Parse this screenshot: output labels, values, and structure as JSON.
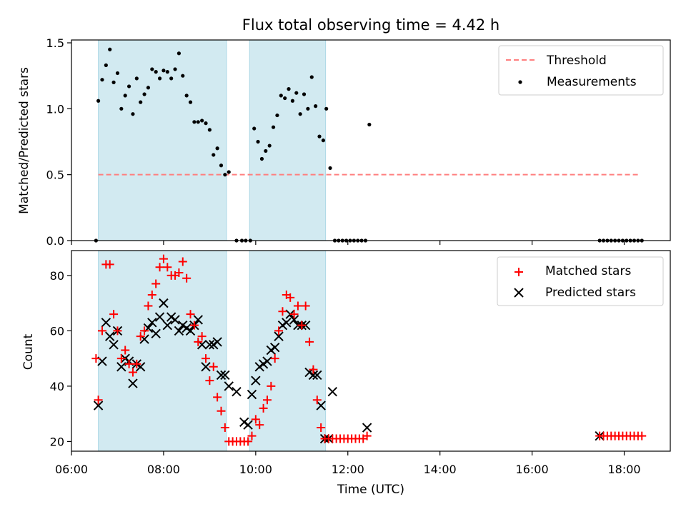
{
  "colors": {
    "band": "#add8e6",
    "threshold": "#ff7f7f",
    "matched": "#ff0000",
    "predicted": "#000000",
    "measurement": "#000000"
  },
  "chart_data": [
    {
      "type": "scatter",
      "title": "Flux total observing time = 4.42 h",
      "xlabel": "",
      "ylabel": "Matched/Predicted stars",
      "xlim": [
        "06:00",
        "19:00"
      ],
      "ylim": [
        0,
        1.5
      ],
      "yticks": [
        "0.0",
        "0.5",
        "1.0",
        "1.5"
      ],
      "grid": false,
      "legend_position": "top-right",
      "shaded_intervals": [
        [
          "06:35",
          "09:22"
        ],
        [
          "09:52",
          "11:31"
        ]
      ],
      "threshold": {
        "name": "Threshold",
        "value": 0.5,
        "x_range": [
          "06:35",
          "18:20"
        ],
        "style": "dashed"
      },
      "series": [
        {
          "name": "Measurements",
          "marker": "dot",
          "x": [
            "06:32",
            "06:35",
            "06:40",
            "06:45",
            "06:50",
            "06:55",
            "07:00",
            "07:05",
            "07:10",
            "07:15",
            "07:20",
            "07:25",
            "07:30",
            "07:35",
            "07:40",
            "07:45",
            "07:50",
            "07:55",
            "08:00",
            "08:05",
            "08:10",
            "08:15",
            "08:20",
            "08:25",
            "08:30",
            "08:35",
            "08:40",
            "08:45",
            "08:50",
            "08:55",
            "09:00",
            "09:05",
            "09:10",
            "09:15",
            "09:20",
            "09:25",
            "09:35",
            "09:42",
            "09:47",
            "09:53",
            "09:58",
            "10:03",
            "10:08",
            "10:13",
            "10:18",
            "10:23",
            "10:28",
            "10:33",
            "10:38",
            "10:43",
            "10:48",
            "10:53",
            "10:58",
            "11:03",
            "11:08",
            "11:13",
            "11:18",
            "11:23",
            "11:28",
            "11:32",
            "11:37",
            "11:43",
            "11:48",
            "11:53",
            "11:58",
            "12:03",
            "12:08",
            "12:13",
            "12:18",
            "12:23",
            "12:28",
            "17:28",
            "17:33",
            "17:38",
            "17:43",
            "17:48",
            "17:53",
            "17:58",
            "18:03",
            "18:08",
            "18:13",
            "18:18",
            "18:23"
          ],
          "y": [
            0.0,
            1.06,
            1.22,
            1.33,
            1.45,
            1.2,
            1.27,
            1.0,
            1.1,
            1.17,
            0.96,
            1.23,
            1.05,
            1.11,
            1.16,
            1.3,
            1.28,
            1.23,
            1.29,
            1.28,
            1.23,
            1.3,
            1.42,
            1.25,
            1.1,
            1.05,
            0.9,
            0.9,
            0.91,
            0.89,
            0.84,
            0.65,
            0.7,
            0.57,
            0.5,
            0.52,
            0.0,
            0.0,
            0.0,
            0.0,
            0.85,
            0.75,
            0.62,
            0.68,
            0.72,
            0.86,
            0.95,
            1.1,
            1.08,
            1.15,
            1.06,
            1.12,
            0.96,
            1.11,
            1.0,
            1.24,
            1.02,
            0.79,
            0.76,
            1.0,
            0.55,
            0.0,
            0.0,
            0.0,
            0.0,
            0.0,
            0.0,
            0.0,
            0.0,
            0.0,
            0.88,
            0.0,
            0.0,
            0.0,
            0.0,
            0.0,
            0.0,
            0.0,
            0.0,
            0.0,
            0.0,
            0.0,
            0.0
          ]
        }
      ]
    },
    {
      "type": "scatter",
      "title": "",
      "xlabel": "Time (UTC)",
      "ylabel": "Count",
      "xlim": [
        "06:00",
        "19:00"
      ],
      "ylim": [
        16.5,
        89
      ],
      "yticks": [
        "20",
        "40",
        "60",
        "80"
      ],
      "xticks": [
        "06:00",
        "08:00",
        "10:00",
        "12:00",
        "14:00",
        "16:00",
        "18:00"
      ],
      "grid": false,
      "legend_position": "top-right",
      "shaded_intervals": [
        [
          "06:35",
          "09:22"
        ],
        [
          "09:52",
          "11:31"
        ]
      ],
      "series": [
        {
          "name": "Matched stars",
          "marker": "plus",
          "x": [
            "06:32",
            "06:35",
            "06:40",
            "06:45",
            "06:50",
            "06:55",
            "07:00",
            "07:05",
            "07:10",
            "07:15",
            "07:20",
            "07:25",
            "07:30",
            "07:35",
            "07:40",
            "07:45",
            "07:50",
            "07:55",
            "08:00",
            "08:05",
            "08:10",
            "08:15",
            "08:20",
            "08:25",
            "08:30",
            "08:35",
            "08:40",
            "08:45",
            "08:50",
            "08:55",
            "09:00",
            "09:05",
            "09:10",
            "09:15",
            "09:20",
            "09:25",
            "09:30",
            "09:35",
            "09:40",
            "09:45",
            "09:50",
            "09:55",
            "10:00",
            "10:05",
            "10:10",
            "10:15",
            "10:20",
            "10:25",
            "10:30",
            "10:35",
            "10:40",
            "10:45",
            "10:50",
            "10:55",
            "11:00",
            "11:05",
            "11:10",
            "11:15",
            "11:20",
            "11:25",
            "11:30",
            "11:35",
            "11:40",
            "11:45",
            "11:50",
            "11:55",
            "12:00",
            "12:05",
            "12:10",
            "12:15",
            "12:20",
            "12:25",
            "17:28",
            "17:33",
            "17:38",
            "17:43",
            "17:48",
            "17:53",
            "17:58",
            "18:03",
            "18:08",
            "18:13",
            "18:18",
            "18:23"
          ],
          "y": [
            50,
            35,
            60,
            84,
            84,
            66,
            60,
            50,
            53,
            48,
            45,
            48,
            58,
            60,
            69,
            73,
            77,
            83,
            86,
            83,
            80,
            80,
            81,
            85,
            79,
            66,
            62,
            56,
            58,
            50,
            42,
            47,
            36,
            31,
            25,
            20,
            20,
            20,
            20,
            20,
            20,
            22,
            28,
            26,
            32,
            35,
            40,
            50,
            60,
            67,
            73,
            72,
            66,
            69,
            62,
            69,
            56,
            46,
            35,
            25,
            21,
            21,
            21,
            21,
            21,
            21,
            21,
            21,
            21,
            21,
            21,
            22,
            22,
            22,
            22,
            22,
            22,
            22,
            22,
            22,
            22,
            22,
            22,
            22
          ]
        },
        {
          "name": "Predicted stars",
          "marker": "x",
          "x": [
            "06:35",
            "06:40",
            "06:45",
            "06:50",
            "06:55",
            "07:00",
            "07:05",
            "07:10",
            "07:15",
            "07:20",
            "07:25",
            "07:30",
            "07:35",
            "07:40",
            "07:45",
            "07:50",
            "07:55",
            "08:00",
            "08:05",
            "08:10",
            "08:15",
            "08:20",
            "08:25",
            "08:30",
            "08:35",
            "08:40",
            "08:45",
            "08:50",
            "08:55",
            "09:00",
            "09:05",
            "09:10",
            "09:15",
            "09:20",
            "09:25",
            "09:35",
            "09:45",
            "09:50",
            "09:55",
            "10:00",
            "10:05",
            "10:10",
            "10:15",
            "10:20",
            "10:25",
            "10:30",
            "10:35",
            "10:40",
            "10:45",
            "10:50",
            "10:55",
            "11:00",
            "11:05",
            "11:10",
            "11:15",
            "11:20",
            "11:25",
            "11:30",
            "11:35",
            "11:40",
            "12:25",
            "17:28"
          ],
          "y": [
            33,
            49,
            63,
            58,
            55,
            60,
            47,
            50,
            49,
            41,
            48,
            47,
            57,
            61,
            63,
            59,
            65,
            70,
            62,
            65,
            64,
            60,
            62,
            61,
            60,
            62,
            64,
            55,
            47,
            55,
            55,
            56,
            44,
            44,
            40,
            38,
            27,
            26,
            37,
            42,
            47,
            48,
            49,
            53,
            54,
            58,
            62,
            63,
            66,
            64,
            62,
            62,
            62,
            45,
            44,
            44,
            33,
            21,
            21,
            38,
            25,
            22
          ]
        }
      ]
    }
  ]
}
